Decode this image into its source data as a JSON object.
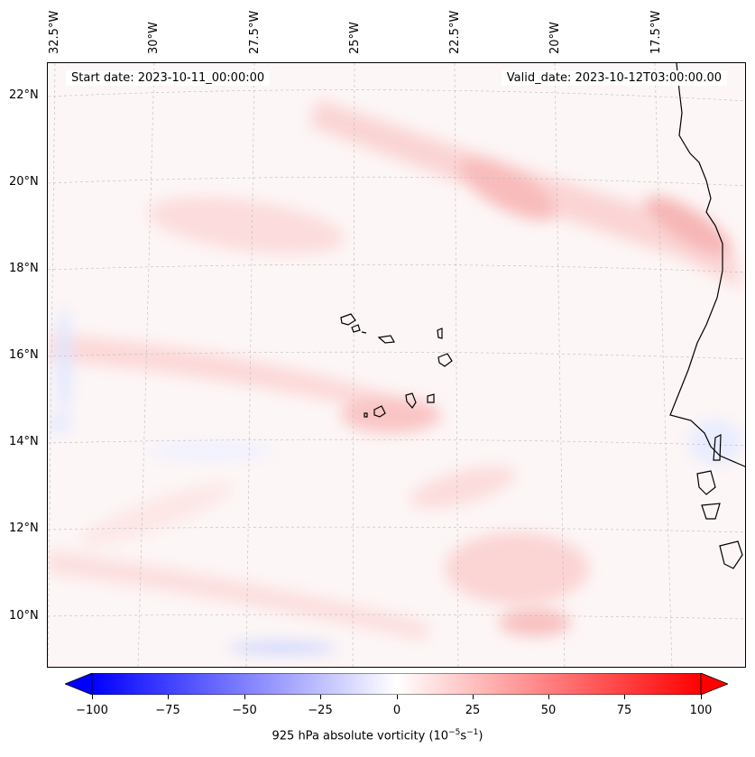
{
  "map": {
    "start_date": "Start date: 2023-10-11_00:00:00",
    "valid_date": "Valid_date: 2023-10-12T03:00:00.00",
    "lon_labels": [
      "32.5°W",
      "30°W",
      "27.5°W",
      "25°W",
      "22.5°W",
      "20°W",
      "17.5°W"
    ],
    "lat_labels": [
      "22°N",
      "20°N",
      "18°N",
      "16°N",
      "14°N",
      "12°N",
      "10°N"
    ],
    "field": "925 hPa absolute vorticity",
    "colors": {
      "negative": "#0000ff",
      "zero": "#ffffff",
      "positive": "#ff0000",
      "coast": "#000000"
    }
  },
  "colorbar": {
    "ticks": [
      "−100",
      "−75",
      "−50",
      "−25",
      "0",
      "25",
      "50",
      "75",
      "100"
    ],
    "label_main": "925 hPa absolute vorticity (10",
    "label_exp1": "−5",
    "label_mid": "s",
    "label_exp2": "−1",
    "label_end": ")",
    "range": [
      -100,
      100
    ]
  }
}
